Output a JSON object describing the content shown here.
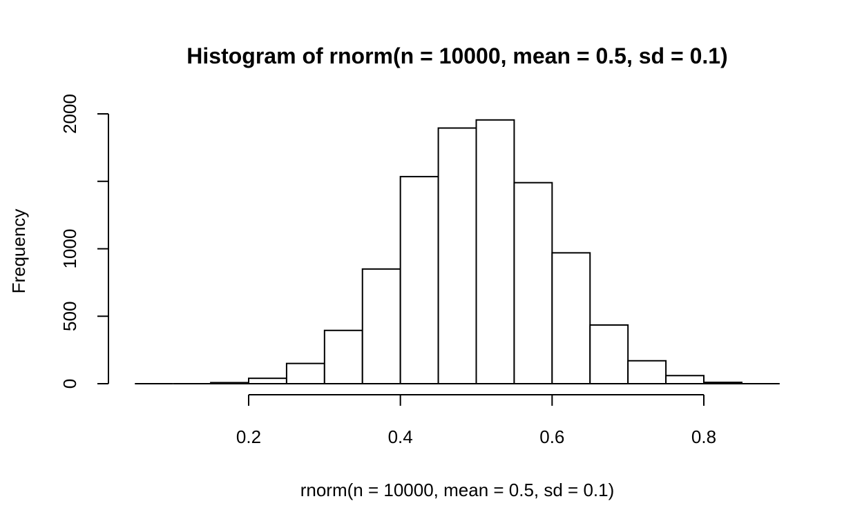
{
  "chart_data": {
    "type": "bar",
    "title": "Histogram of rnorm(n = 10000, mean = 0.5, sd = 0.1)",
    "xlabel": "rnorm(n = 10000, mean = 0.5, sd = 0.1)",
    "ylabel": "Frequency",
    "bins": [
      {
        "x0": 0.05,
        "x1": 0.1,
        "count": 0
      },
      {
        "x0": 0.1,
        "x1": 0.15,
        "count": 0
      },
      {
        "x0": 0.15,
        "x1": 0.2,
        "count": 8
      },
      {
        "x0": 0.2,
        "x1": 0.25,
        "count": 40
      },
      {
        "x0": 0.25,
        "x1": 0.3,
        "count": 150
      },
      {
        "x0": 0.3,
        "x1": 0.35,
        "count": 395
      },
      {
        "x0": 0.35,
        "x1": 0.4,
        "count": 850
      },
      {
        "x0": 0.4,
        "x1": 0.45,
        "count": 1535
      },
      {
        "x0": 0.45,
        "x1": 0.5,
        "count": 1895
      },
      {
        "x0": 0.5,
        "x1": 0.55,
        "count": 1955
      },
      {
        "x0": 0.55,
        "x1": 0.6,
        "count": 1490
      },
      {
        "x0": 0.6,
        "x1": 0.65,
        "count": 970
      },
      {
        "x0": 0.65,
        "x1": 0.7,
        "count": 435
      },
      {
        "x0": 0.7,
        "x1": 0.75,
        "count": 170
      },
      {
        "x0": 0.75,
        "x1": 0.8,
        "count": 60
      },
      {
        "x0": 0.8,
        "x1": 0.85,
        "count": 10
      },
      {
        "x0": 0.85,
        "x1": 0.9,
        "count": 0
      }
    ],
    "xlim": [
      0.05,
      0.9
    ],
    "ylim": [
      0,
      2000
    ],
    "xticks": [
      0.2,
      0.4,
      0.6,
      0.8
    ],
    "xtick_labels": [
      "0.2",
      "0.4",
      "0.6",
      "0.8"
    ],
    "yticks": [
      0,
      500,
      1000,
      1500,
      2000
    ],
    "ytick_labels": [
      "0",
      "500",
      "1000",
      "",
      "2000"
    ],
    "grid": false,
    "legend": "none"
  }
}
